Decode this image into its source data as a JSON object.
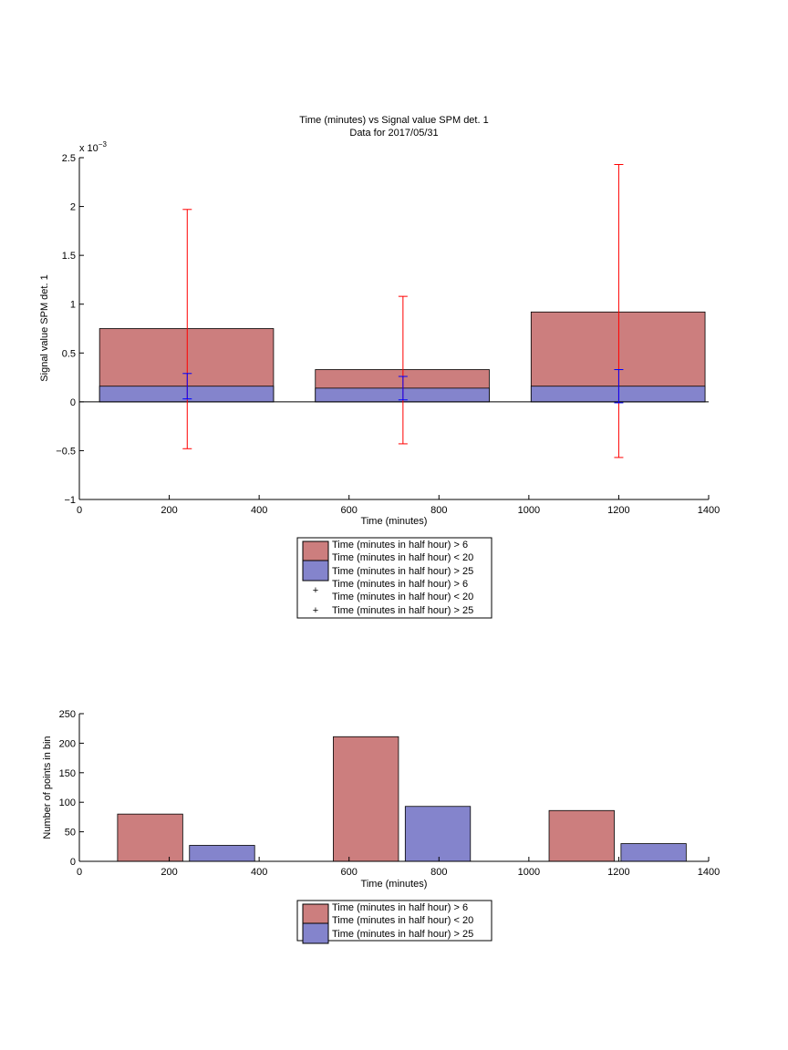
{
  "colors": {
    "red_bar": "#cc7e7e",
    "blue_bar": "#8484cc",
    "red_err": "#ff0000",
    "blue_err": "#0000ff"
  },
  "legend_top": [
    "Time (minutes in half hour) > 6",
    "Time (minutes in half hour) < 20",
    "Time (minutes in half hour) > 25",
    "Time (minutes in half hour) > 6",
    "Time (minutes in half hour) < 20",
    "Time (minutes in half hour) > 25"
  ],
  "legend_bottom": [
    "Time (minutes in half hour) > 6",
    "Time (minutes in half hour) < 20",
    "Time (minutes in half hour) > 25"
  ],
  "chart_data": [
    {
      "type": "bar",
      "title": "Time (minutes) vs Signal value SPM det. 1",
      "subtitle": "Data for 2017/05/31",
      "xlabel": "Time (minutes)",
      "ylabel": "Signal value SPM det. 1",
      "exponent_label": "x 10",
      "exponent_power": "−3",
      "xlim": [
        0,
        1400
      ],
      "ylim": [
        -1,
        2.5
      ],
      "x_ticks": [
        0,
        200,
        400,
        600,
        800,
        1000,
        1200,
        1400
      ],
      "y_ticks": [
        -1,
        -0.5,
        0,
        0.5,
        1,
        1.5,
        2,
        2.5
      ],
      "series": [
        {
          "bars": [
            {
              "x0": 45,
              "x1": 432,
              "value": 0.75
            },
            {
              "x0": 525,
              "x1": 912,
              "value": 0.33
            },
            {
              "x0": 1005,
              "x1": 1392,
              "value": 0.92
            }
          ],
          "errorbars": [
            {
              "x": 240,
              "low": -0.48,
              "high": 1.97
            },
            {
              "x": 720,
              "low": -0.43,
              "high": 1.08
            },
            {
              "x": 1200,
              "low": -0.57,
              "high": 2.43
            }
          ]
        },
        {
          "bars": [
            {
              "x0": 45,
              "x1": 432,
              "value": 0.16
            },
            {
              "x0": 525,
              "x1": 912,
              "value": 0.14
            },
            {
              "x0": 1005,
              "x1": 1392,
              "value": 0.16
            }
          ],
          "errorbars": [
            {
              "x": 240,
              "low": 0.03,
              "high": 0.29
            },
            {
              "x": 720,
              "low": 0.02,
              "high": 0.26
            },
            {
              "x": 1200,
              "low": -0.01,
              "high": 0.33
            }
          ]
        }
      ]
    },
    {
      "type": "bar",
      "xlabel": "Time (minutes)",
      "ylabel": "Number of points in bin",
      "xlim": [
        0,
        1400
      ],
      "ylim": [
        0,
        250
      ],
      "x_ticks": [
        0,
        200,
        400,
        600,
        800,
        1000,
        1200,
        1400
      ],
      "y_ticks": [
        0,
        50,
        100,
        150,
        200,
        250
      ],
      "series": [
        {
          "bars": [
            {
              "x0": 85,
              "x1": 230,
              "value": 80
            },
            {
              "x0": 565,
              "x1": 710,
              "value": 211
            },
            {
              "x0": 1045,
              "x1": 1190,
              "value": 86
            }
          ]
        },
        {
          "bars": [
            {
              "x0": 245,
              "x1": 390,
              "value": 27
            },
            {
              "x0": 725,
              "x1": 870,
              "value": 93
            },
            {
              "x0": 1205,
              "x1": 1350,
              "value": 30
            }
          ]
        }
      ]
    }
  ]
}
